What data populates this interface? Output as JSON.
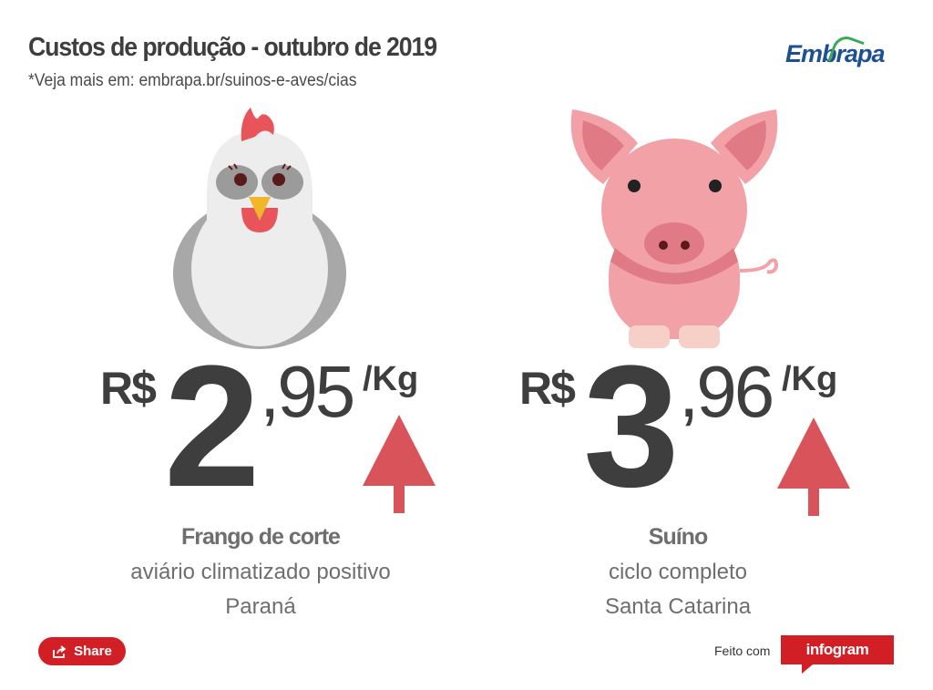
{
  "header": {
    "title": "Custos de produção - outubro de 2019",
    "subtitle": "*Veja mais em: embrapa.br/suinos-e-aves/cias"
  },
  "logo": {
    "text": "Embrapa",
    "color": "#1d4f91",
    "accent": "#3aa957"
  },
  "cards": [
    {
      "animal": "chicken-illustration",
      "currency": "R$",
      "price_int": "2",
      "price_dec": ",95",
      "unit": "/Kg",
      "trend": "up",
      "name": "Frango de corte",
      "line1": "aviário climatizado positivo",
      "line2": "Paraná"
    },
    {
      "animal": "pig-illustration",
      "currency": "R$",
      "price_int": "3",
      "price_dec": ",96",
      "unit": "/Kg",
      "trend": "up",
      "name": "Suíno",
      "line1": "ciclo completo",
      "line2": "Santa Catarina"
    }
  ],
  "footer": {
    "share_label": "Share",
    "made_with": "Feito com",
    "brand": "infogram"
  },
  "colors": {
    "arrow": "#d9545a",
    "text": "#3e3e3e",
    "brand_red": "#d21f26"
  }
}
